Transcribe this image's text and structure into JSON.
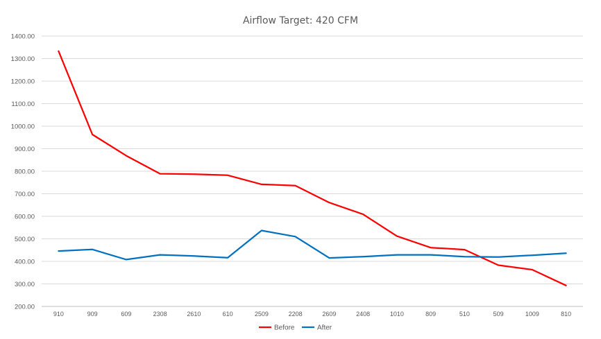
{
  "chart_data": {
    "type": "line",
    "title": "Airflow Target: 420 CFM",
    "xlabel": "",
    "ylabel": "",
    "categories": [
      "910",
      "909",
      "609",
      "2308",
      "2610",
      "610",
      "2509",
      "2208",
      "2609",
      "2408",
      "1010",
      "809",
      "510",
      "509",
      "1009",
      "810"
    ],
    "series": [
      {
        "name": "Before",
        "color": "#ff0000",
        "values": [
          1333,
          963,
          869,
          789,
          787,
          782,
          742,
          736,
          661,
          609,
          512,
          461,
          452,
          383,
          363,
          293
        ]
      },
      {
        "name": "After",
        "color": "#0070c0",
        "values": [
          446,
          453,
          408,
          429,
          424,
          416,
          537,
          510,
          415,
          421,
          429,
          429,
          421,
          419,
          427,
          436
        ]
      }
    ],
    "ylim": [
      200,
      1400
    ],
    "yticks": [
      "200.00",
      "300.00",
      "400.00",
      "500.00",
      "600.00",
      "700.00",
      "800.00",
      "900.00",
      "1000.00",
      "1100.00",
      "1200.00",
      "1300.00",
      "1400.00"
    ],
    "ytick_values": [
      200,
      300,
      400,
      500,
      600,
      700,
      800,
      900,
      1000,
      1100,
      1200,
      1300,
      1400
    ],
    "grid": true,
    "legend_position": "bottom",
    "gridline_color": "#d9d9d9",
    "axis_color": "#bfbfbf"
  }
}
